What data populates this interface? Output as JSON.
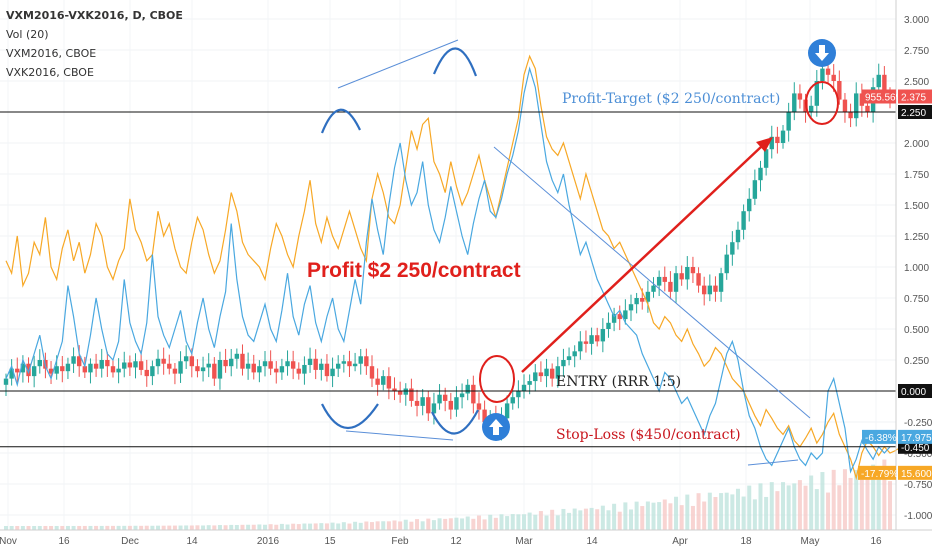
{
  "header": {
    "symbol_line": "VXM2016-VXK2016, D, CBOE",
    "vol_line": "Vol (20)",
    "series1_line": "VXM2016, CBOE",
    "series2_line": "VXK2016, CBOE"
  },
  "colors": {
    "up": "#26a69a",
    "down": "#ef5350",
    "orange_line": "#f7a826",
    "blue_line": "#4aa8e0",
    "annotation_red": "#e0201c",
    "annotation_blue": "#2f6fc0",
    "arrow_icon": "#2f7fd8"
  },
  "annotations": {
    "profit_text": "Profit $2 250/contract",
    "target_text": "Profit-Target ($2 250/contract)",
    "entry_text": "ENTRY (RRR 1:5)",
    "stop_text": "Stop-Loss ($450/contract)"
  },
  "price_badges": {
    "top_pct": "955.56%",
    "top_val": "2.375",
    "target_val": "2.250",
    "zero_val": "0.000",
    "stop_val": "-0.450",
    "blue_pct": "-6.38%",
    "blue_val": "17.975",
    "orange_pct": "-17.79%",
    "orange_val": "15.600"
  },
  "chart_data": {
    "type": "candlestick",
    "y_axis_ticks": [
      "3.000",
      "2.750",
      "2.500",
      "2.250",
      "2.000",
      "1.750",
      "1.500",
      "1.250",
      "1.000",
      "0.750",
      "0.500",
      "0.250",
      "0.000",
      "-0.250",
      "-0.500",
      "-0.750",
      "-1.000"
    ],
    "x_axis_ticks": [
      "Nov",
      "16",
      "Dec",
      "14",
      "2016",
      "15",
      "Feb",
      "12",
      "Mar",
      "14",
      "Apr",
      "18",
      "May",
      "16"
    ],
    "ylim": [
      -1.05,
      3.0
    ],
    "levels": {
      "profit_target": 2.25,
      "entry": 0.0,
      "stop_loss": -0.45
    },
    "spread_close": [
      0.1,
      0.18,
      0.15,
      0.22,
      0.12,
      0.2,
      0.25,
      0.18,
      0.14,
      0.2,
      0.16,
      0.22,
      0.28,
      0.2,
      0.15,
      0.22,
      0.18,
      0.25,
      0.2,
      0.15,
      0.18,
      0.23,
      0.19,
      0.24,
      0.17,
      0.12,
      0.2,
      0.26,
      0.22,
      0.18,
      0.14,
      0.24,
      0.28,
      0.2,
      0.16,
      0.19,
      0.22,
      0.1,
      0.25,
      0.2,
      0.26,
      0.3,
      0.18,
      0.22,
      0.15,
      0.2,
      0.24,
      0.18,
      0.15,
      0.2,
      0.24,
      0.18,
      0.14,
      0.21,
      0.26,
      0.17,
      0.22,
      0.12,
      0.18,
      0.22,
      0.24,
      0.2,
      0.22,
      0.28,
      0.2,
      0.1,
      0.05,
      0.12,
      0.02,
      0.0,
      -0.03,
      0.02,
      -0.08,
      -0.12,
      -0.05,
      -0.18,
      -0.1,
      -0.03,
      -0.08,
      -0.15,
      -0.05,
      -0.02,
      0.05,
      -0.1,
      -0.15,
      -0.25,
      -0.2,
      -0.32,
      -0.22,
      -0.1,
      -0.05,
      0.0,
      0.05,
      0.08,
      0.15,
      0.12,
      0.18,
      0.1,
      0.2,
      0.25,
      0.28,
      0.32,
      0.4,
      0.38,
      0.45,
      0.4,
      0.5,
      0.55,
      0.62,
      0.58,
      0.65,
      0.7,
      0.75,
      0.72,
      0.8,
      0.85,
      0.92,
      0.88,
      0.8,
      0.95,
      0.9,
      1.0,
      0.95,
      0.85,
      0.78,
      0.85,
      0.8,
      0.95,
      1.1,
      1.2,
      1.3,
      1.45,
      1.55,
      1.7,
      1.8,
      1.95,
      2.05,
      2.0,
      2.1,
      2.25,
      2.4,
      2.35,
      2.25,
      2.3,
      2.5,
      2.6,
      2.55,
      2.5,
      2.35,
      2.25,
      2.2,
      2.4,
      2.3,
      2.25,
      2.45,
      2.55,
      2.4,
      2.37
    ],
    "series": [
      {
        "name": "VXM2016, CBOE",
        "values": [
          1.05,
          0.95,
          1.25,
          0.85,
          0.95,
          1.2,
          1.1,
          1.4,
          1.0,
          0.9,
          1.15,
          1.3,
          1.05,
          1.2,
          0.95,
          1.1,
          1.35,
          1.25,
          1.0,
          0.9,
          1.05,
          1.15,
          1.55,
          1.3,
          1.2,
          1.05,
          1.1,
          1.45,
          1.25,
          1.35,
          1.15,
          1.0,
          0.95,
          1.2,
          1.4,
          1.3,
          1.1,
          0.95,
          1.05,
          1.3,
          1.6,
          1.45,
          1.2,
          1.1,
          1.05,
          1.0,
          0.9,
          1.15,
          1.35,
          1.25,
          1.1,
          1.0,
          1.25,
          1.45,
          1.7,
          1.35,
          1.2,
          1.4,
          1.25,
          1.15,
          1.3,
          1.45,
          1.3,
          1.15,
          1.05,
          1.55,
          1.75,
          1.6,
          1.4,
          1.35,
          1.5,
          1.8,
          2.1,
          1.95,
          2.15,
          2.2,
          1.85,
          1.75,
          1.6,
          1.85,
          1.65,
          1.5,
          1.6,
          1.75,
          1.9,
          1.7,
          1.55,
          1.4,
          1.6,
          1.8,
          2.0,
          2.2,
          2.55,
          2.7,
          2.6,
          2.3,
          2.05,
          1.95,
          1.9,
          2.0,
          1.85,
          1.7,
          1.55,
          1.75,
          1.6,
          1.45,
          1.3,
          1.25,
          1.15,
          1.2,
          1.1,
          1.0,
          0.9,
          0.8,
          0.7,
          0.55,
          0.5,
          0.6,
          0.55,
          0.45,
          0.4,
          0.5,
          0.38,
          0.3,
          0.2,
          0.25,
          0.35,
          0.3,
          0.2,
          0.1,
          0.05,
          0.0,
          -0.1,
          -0.2,
          -0.28,
          -0.15,
          -0.22,
          -0.3,
          -0.35,
          -0.28,
          -0.4,
          -0.45,
          -0.38,
          -0.3,
          -0.42,
          -0.35,
          -0.25,
          -0.18,
          -0.35,
          -0.45,
          -0.55,
          -0.7,
          -0.5,
          -0.4,
          -0.45,
          -0.52,
          -0.45,
          -0.5,
          -0.48,
          -0.45
        ]
      },
      {
        "name": "VXK2016, CBOE",
        "values": [
          0.1,
          0.2,
          0.05,
          0.25,
          0.15,
          0.3,
          0.45,
          0.2,
          0.1,
          0.25,
          0.4,
          0.85,
          0.6,
          0.3,
          0.2,
          0.45,
          0.75,
          0.5,
          0.3,
          0.25,
          0.4,
          0.9,
          0.55,
          0.4,
          0.3,
          0.55,
          1.1,
          0.6,
          0.45,
          0.35,
          0.5,
          0.65,
          0.4,
          0.3,
          0.55,
          0.75,
          0.5,
          0.35,
          0.6,
          0.8,
          1.35,
          0.9,
          0.6,
          0.45,
          0.4,
          0.55,
          0.7,
          0.5,
          0.4,
          0.65,
          0.95,
          0.6,
          0.45,
          0.7,
          0.85,
          0.55,
          0.4,
          0.6,
          0.75,
          0.5,
          0.4,
          0.65,
          0.9,
          0.7,
          1.2,
          1.55,
          1.3,
          1.1,
          1.5,
          1.8,
          2.0,
          1.7,
          1.5,
          1.6,
          1.85,
          1.5,
          1.3,
          1.2,
          1.4,
          1.65,
          1.45,
          1.25,
          1.1,
          1.35,
          1.55,
          1.7,
          1.45,
          1.4,
          1.55,
          1.75,
          1.9,
          2.1,
          2.4,
          2.6,
          2.45,
          2.15,
          1.85,
          1.7,
          1.6,
          1.75,
          1.5,
          1.3,
          1.1,
          1.2,
          1.05,
          0.9,
          0.8,
          0.7,
          0.6,
          0.65,
          0.55,
          0.5,
          0.45,
          0.3,
          0.2,
          0.1,
          0.0,
          0.15,
          0.1,
          0.0,
          -0.1,
          -0.05,
          -0.15,
          -0.25,
          -0.35,
          -0.2,
          -0.1,
          0.1,
          0.3,
          0.4,
          0.25,
          0.0,
          -0.2,
          -0.3,
          -0.45,
          -0.55,
          -0.6,
          -0.5,
          -0.4,
          -0.3,
          -0.45,
          -0.55,
          -0.6,
          -0.5,
          -0.55,
          -0.5,
          0.0,
          0.1,
          -0.1,
          -0.3,
          -0.65,
          -0.55,
          -0.4,
          -0.48,
          -0.55,
          -0.45,
          -0.5,
          -0.45
        ]
      }
    ]
  }
}
